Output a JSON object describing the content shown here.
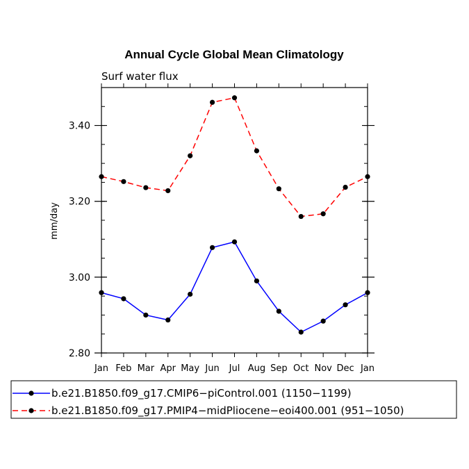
{
  "chart_data": {
    "type": "line",
    "title": "Annual Cycle Global Mean Climatology",
    "subtitle": "Surf water flux",
    "xlabel": "",
    "ylabel": "mm/day",
    "categories": [
      "Jan",
      "Feb",
      "Mar",
      "Apr",
      "May",
      "Jun",
      "Jul",
      "Aug",
      "Sep",
      "Oct",
      "Nov",
      "Dec",
      "Jan"
    ],
    "ylim": [
      2.8,
      3.5
    ],
    "yticks": [
      2.8,
      3.0,
      3.2,
      3.4
    ],
    "ytick_labels": [
      "2.80",
      "3.00",
      "3.20",
      "3.40"
    ],
    "yminor_step": 0.05,
    "grid": false,
    "legend_position": "bottom",
    "series": [
      {
        "name": "b.e21.B1850.f09_g17.CMIP6−piControl.001 (1150−1199)",
        "color": "#0000ff",
        "dash": "solid",
        "values": [
          2.959,
          2.943,
          2.9,
          2.887,
          2.955,
          3.078,
          3.093,
          2.99,
          2.91,
          2.855,
          2.884,
          2.927,
          2.959
        ]
      },
      {
        "name": "b.e21.B1850.f09_g17.PMIP4−midPliocene−eoi400.001 (951−1050)",
        "color": "#ff0000",
        "dash": "dashed",
        "values": [
          3.265,
          3.252,
          3.236,
          3.228,
          3.32,
          3.461,
          3.473,
          3.333,
          3.233,
          3.16,
          3.167,
          3.237,
          3.265
        ]
      }
    ]
  }
}
